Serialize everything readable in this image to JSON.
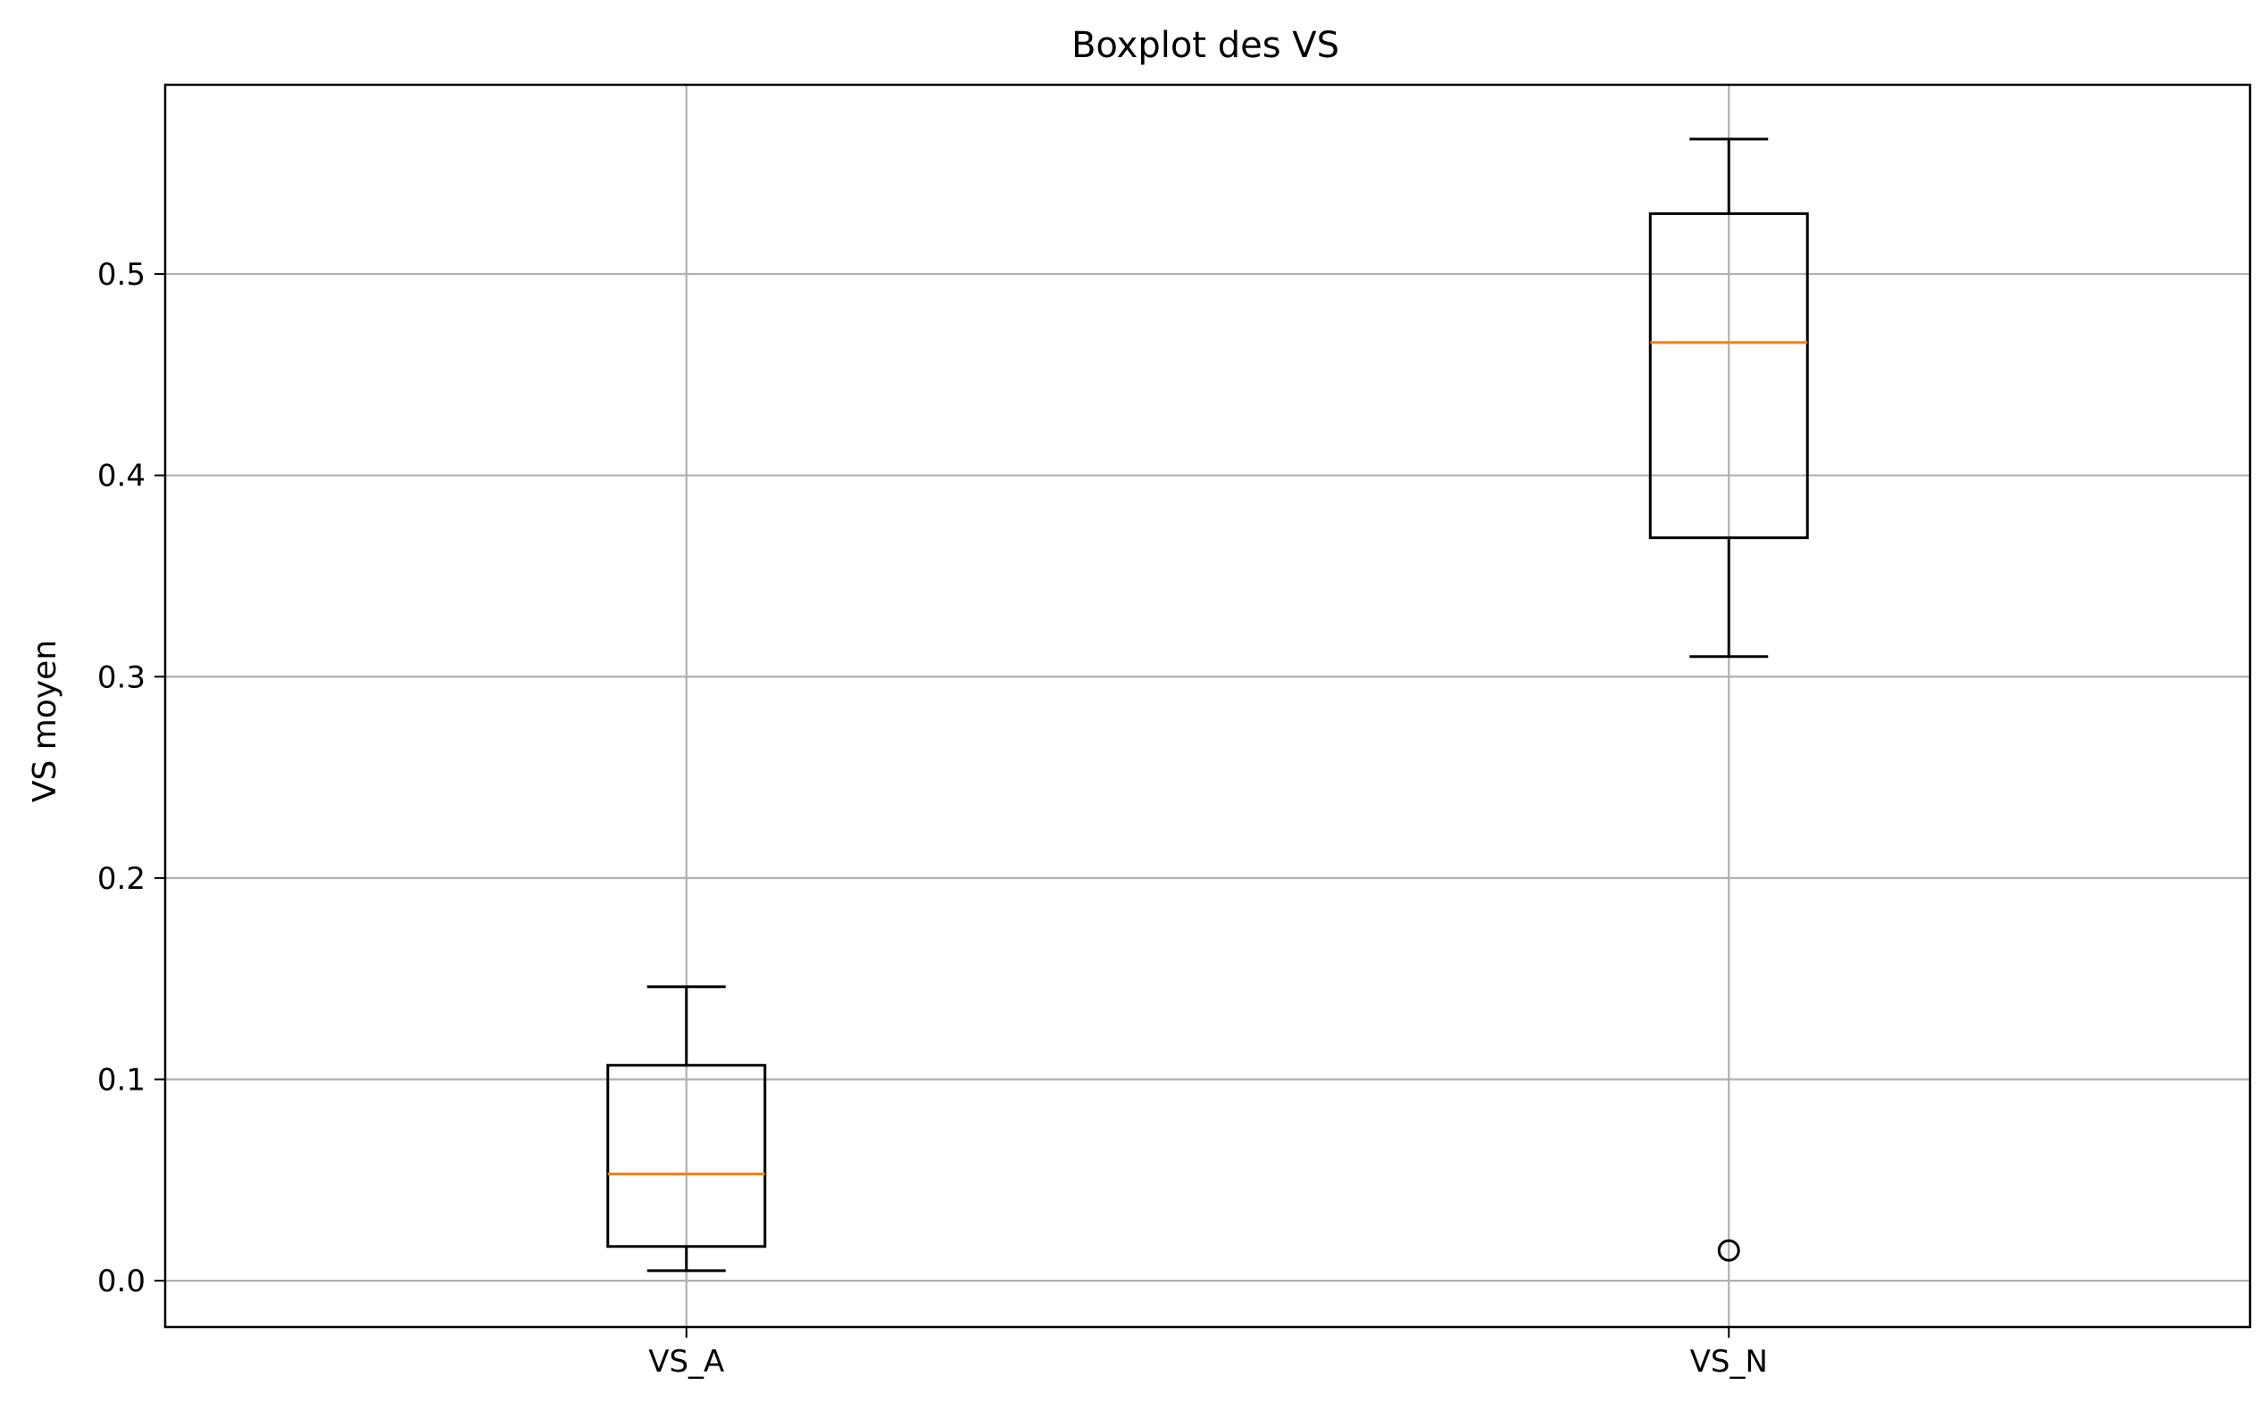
{
  "chart_data": {
    "type": "boxplot",
    "title": "Boxplot des VS",
    "xlabel": "",
    "ylabel": "VS moyen",
    "ylim": [
      -0.023,
      0.594
    ],
    "yticks": [
      0.0,
      0.1,
      0.2,
      0.3,
      0.4,
      0.5
    ],
    "ytick_labels": [
      "0.0",
      "0.1",
      "0.2",
      "0.3",
      "0.4",
      "0.5"
    ],
    "grid": true,
    "categories": [
      "VS_A",
      "VS_N"
    ],
    "boxes": [
      {
        "category": "VS_A",
        "whisker_low": 0.005,
        "q1": 0.017,
        "median": 0.053,
        "q3": 0.107,
        "whisker_high": 0.146,
        "fliers": []
      },
      {
        "category": "VS_N",
        "whisker_low": 0.31,
        "q1": 0.369,
        "median": 0.466,
        "q3": 0.53,
        "whisker_high": 0.567,
        "fliers": [
          0.015
        ]
      }
    ],
    "colors": {
      "box": "#000000",
      "median": "#ff7f0e",
      "grid": "#b0b0b0",
      "axes": "#000000"
    }
  }
}
